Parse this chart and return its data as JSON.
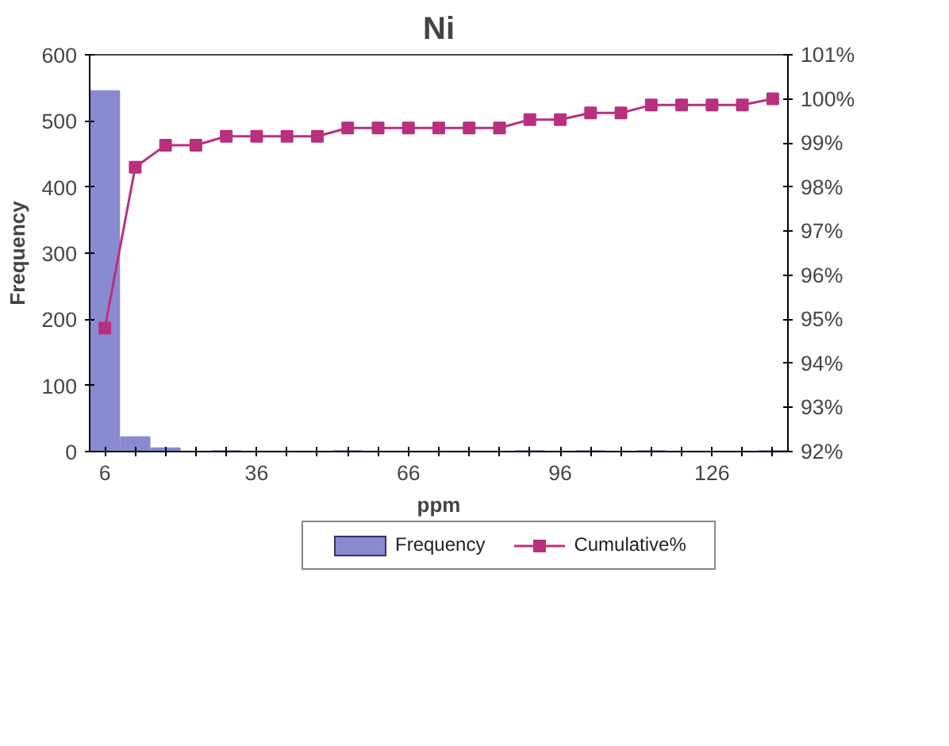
{
  "chart_data": {
    "type": "bar",
    "title": "Ni",
    "xlabel": "ppm",
    "ylabel": "Frequency",
    "categories": [
      "6",
      null,
      null,
      null,
      null,
      "36",
      null,
      null,
      null,
      null,
      "66",
      null,
      null,
      null,
      null,
      "96",
      null,
      null,
      null,
      null,
      "126",
      null,
      null
    ],
    "series": [
      {
        "name": "Frequency",
        "color": "#8a8ad0",
        "values": [
          545,
          22,
          5,
          0,
          1,
          0,
          0,
          0,
          1,
          0,
          0,
          0,
          0,
          0,
          1,
          0,
          1,
          0,
          1,
          0,
          0,
          0,
          1
        ]
      },
      {
        "name": "Cumulative%",
        "type": "line",
        "axis": "y2",
        "color": "#b8307e",
        "marker": "square",
        "values": [
          94.8,
          98.45,
          98.95,
          98.95,
          99.15,
          99.15,
          99.15,
          99.15,
          99.34,
          99.34,
          99.34,
          99.34,
          99.34,
          99.34,
          99.53,
          99.53,
          99.68,
          99.68,
          99.86,
          99.86,
          99.86,
          99.86,
          100
        ]
      }
    ],
    "ylim": [
      0,
      600
    ],
    "yticks": [
      0,
      100,
      200,
      300,
      400,
      500,
      600
    ],
    "y2lim": [
      92,
      101
    ],
    "y2ticks": [
      {
        "value": 92,
        "label": "92%"
      },
      {
        "value": 93,
        "label": "93%"
      },
      {
        "value": 94,
        "label": "94%"
      },
      {
        "value": 95,
        "label": "95%"
      },
      {
        "value": 96,
        "label": "96%"
      },
      {
        "value": 97,
        "label": "97%"
      },
      {
        "value": 98,
        "label": "98%"
      },
      {
        "value": 99,
        "label": "99%"
      },
      {
        "value": 100,
        "label": "100%"
      },
      {
        "value": 101,
        "label": "101%"
      }
    ],
    "grid": false,
    "legend": "bottom"
  }
}
